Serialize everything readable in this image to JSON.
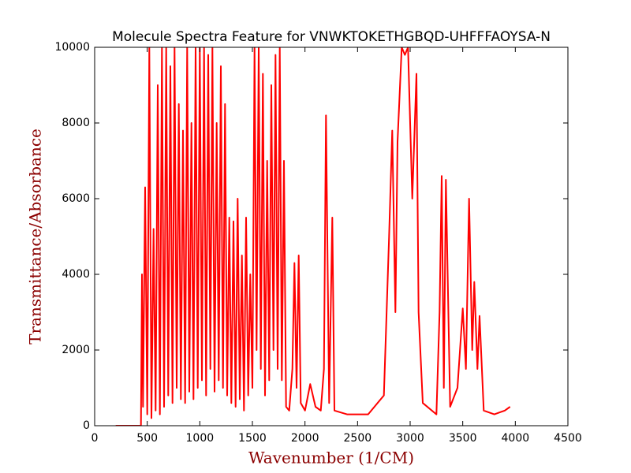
{
  "chart_data": {
    "type": "line",
    "title": "Molecule Spectra Feature for VNWKTOKETHGBQD-UHFFFAOYSA-N",
    "x_label": "Wavenumber (1/CM)",
    "y_label": "Transmittance/Absorbance",
    "color": "#ff0000",
    "xlim": [
      0,
      4500
    ],
    "xticks": [
      0,
      500,
      1000,
      1500,
      2000,
      2500,
      3000,
      3500,
      4000,
      4500
    ],
    "ylim": [
      0,
      10000
    ],
    "yticks": [
      0,
      2000,
      4000,
      6000,
      8000,
      10000
    ],
    "x": [
      200,
      440,
      450,
      460,
      480,
      500,
      520,
      540,
      560,
      580,
      600,
      620,
      640,
      660,
      680,
      700,
      720,
      740,
      760,
      780,
      800,
      820,
      840,
      860,
      880,
      900,
      920,
      940,
      960,
      980,
      1000,
      1020,
      1040,
      1060,
      1080,
      1100,
      1120,
      1140,
      1160,
      1180,
      1200,
      1220,
      1240,
      1260,
      1280,
      1300,
      1320,
      1340,
      1360,
      1380,
      1400,
      1420,
      1440,
      1460,
      1480,
      1500,
      1520,
      1540,
      1560,
      1580,
      1600,
      1620,
      1640,
      1660,
      1680,
      1700,
      1720,
      1740,
      1760,
      1780,
      1800,
      1820,
      1850,
      1880,
      1900,
      1920,
      1940,
      1960,
      2000,
      2050,
      2100,
      2150,
      2180,
      2200,
      2230,
      2260,
      2280,
      2400,
      2600,
      2750,
      2800,
      2830,
      2860,
      2880,
      2920,
      2950,
      2980,
      3020,
      3060,
      3080,
      3120,
      3250,
      3280,
      3300,
      3320,
      3340,
      3380,
      3450,
      3500,
      3530,
      3560,
      3590,
      3610,
      3640,
      3660,
      3700,
      3800,
      3900,
      3950
    ],
    "values": [
      0,
      0,
      4000,
      500,
      6300,
      300,
      10000,
      200,
      5200,
      400,
      9000,
      300,
      10000,
      500,
      10000,
      800,
      9500,
      600,
      10000,
      1000,
      8500,
      700,
      7800,
      600,
      10000,
      900,
      8000,
      700,
      10000,
      1000,
      10000,
      1200,
      10000,
      800,
      9800,
      1500,
      10000,
      900,
      8000,
      1200,
      9500,
      1000,
      8500,
      800,
      5500,
      600,
      5400,
      500,
      6000,
      700,
      4500,
      400,
      5500,
      800,
      4000,
      1000,
      10000,
      2000,
      10000,
      1500,
      9300,
      800,
      7000,
      1200,
      9000,
      2000,
      9800,
      1500,
      10000,
      1200,
      7000,
      500,
      400,
      1500,
      4300,
      1000,
      4500,
      600,
      400,
      1100,
      500,
      400,
      1500,
      8200,
      600,
      5500,
      400,
      300,
      300,
      800,
      5000,
      7800,
      3000,
      7500,
      10000,
      9800,
      10000,
      6000,
      9300,
      3000,
      600,
      300,
      3000,
      6600,
      1000,
      6500,
      500,
      1000,
      3100,
      1500,
      6000,
      2000,
      3800,
      1500,
      2900,
      400,
      300,
      400,
      500
    ]
  }
}
